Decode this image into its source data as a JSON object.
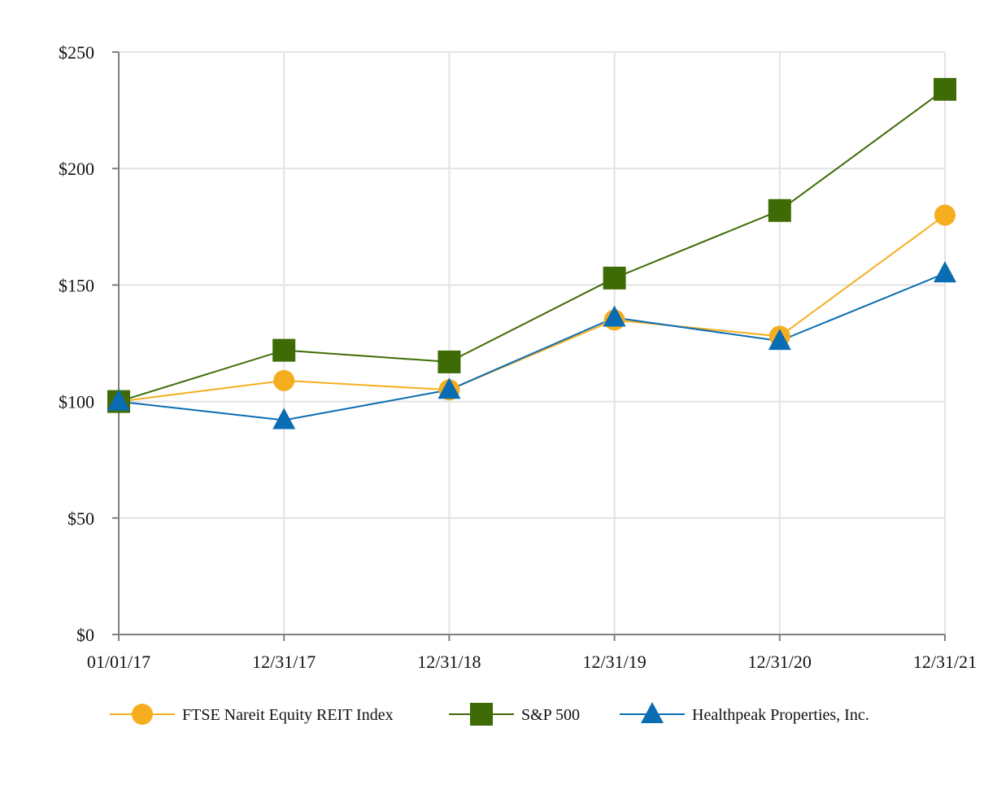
{
  "chart_data": {
    "type": "line",
    "categories": [
      "01/01/17",
      "12/31/17",
      "12/31/18",
      "12/31/19",
      "12/31/20",
      "12/31/21"
    ],
    "ylim": [
      0,
      250
    ],
    "y_ticks": [
      0,
      50,
      100,
      150,
      200,
      250
    ],
    "y_tick_labels": [
      "$0",
      "$50",
      "$100",
      "$150",
      "$200",
      "$250"
    ],
    "grid": true,
    "legend_position": "bottom",
    "series": [
      {
        "name": "FTSE Nareit Equity REIT Index",
        "marker": "circle",
        "color": "#F5AE1F",
        "values": [
          100,
          109,
          105,
          135,
          128,
          180
        ]
      },
      {
        "name": "S&P 500",
        "marker": "square",
        "color": "#3F6B06",
        "values": [
          100,
          122,
          117,
          153,
          182,
          234
        ]
      },
      {
        "name": "Healthpeak Properties, Inc.",
        "marker": "triangle",
        "color": "#0A6CB3",
        "values": [
          100,
          92,
          105,
          136,
          126,
          155
        ]
      }
    ]
  }
}
